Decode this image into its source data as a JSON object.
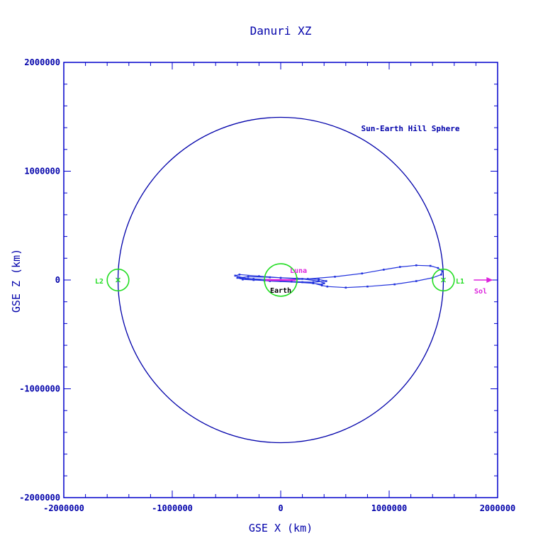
{
  "chart_data": {
    "type": "line",
    "title": "Danuri XZ",
    "xlabel": "GSE X (km)",
    "ylabel": "GSE Z (km)",
    "xlim": [
      -2000000,
      2000000
    ],
    "ylim": [
      -2000000,
      2000000
    ],
    "x_ticks": [
      -2000000,
      -1000000,
      0,
      1000000,
      2000000
    ],
    "y_ticks": [
      -2000000,
      -1000000,
      0,
      1000000,
      2000000
    ],
    "x_tick_labels": [
      "-2000000",
      "-1000000",
      "0",
      "1000000",
      "2000000"
    ],
    "y_tick_labels": [
      "-2000000",
      "-1000000",
      "0",
      "1000000",
      "2000000"
    ],
    "hill_sphere": {
      "label": "Sun-Earth Hill Sphere",
      "center": [
        0,
        0
      ],
      "radius": 1500000
    },
    "lagrange_points": [
      {
        "name": "L1",
        "label": "L1",
        "x": 1500000,
        "z": 0,
        "radius": 100000
      },
      {
        "name": "L2",
        "label": "L2",
        "x": -1500000,
        "z": 0,
        "radius": 100000
      }
    ],
    "earth": {
      "label": "Earth",
      "x": 0,
      "z": 0,
      "radius": 150000
    },
    "moon_orbit": {
      "label": "Luna",
      "x_range": [
        -140000,
        140000
      ],
      "z": 0
    },
    "sun_direction": {
      "label": "Sol",
      "from_x": 1780000,
      "to_x": 1950000,
      "z": 0
    },
    "trajectory": {
      "x": [
        0,
        250000,
        500000,
        750000,
        950000,
        1100000,
        1250000,
        1380000,
        1450000,
        1490000,
        1480000,
        1400000,
        1250000,
        1050000,
        800000,
        600000,
        430000,
        380000,
        300000,
        150000,
        -100000,
        -300000,
        -420000,
        -380000,
        -200000,
        0,
        200000,
        350000,
        400000,
        380000,
        200000,
        0,
        -250000,
        -380000,
        -300000,
        -100000,
        150000,
        350000,
        420000,
        300000,
        100000,
        -150000,
        -350000,
        -400000,
        -250000,
        0
      ],
      "z": [
        0,
        10000,
        30000,
        60000,
        95000,
        120000,
        135000,
        130000,
        110000,
        80000,
        50000,
        20000,
        -10000,
        -40000,
        -60000,
        -70000,
        -60000,
        -50000,
        -30000,
        -20000,
        -10000,
        10000,
        40000,
        50000,
        35000,
        20000,
        10000,
        -10000,
        -30000,
        -40000,
        -20000,
        -10000,
        0,
        20000,
        30000,
        25000,
        15000,
        5000,
        -10000,
        -20000,
        -15000,
        -5000,
        5000,
        20000,
        10000,
        0
      ]
    },
    "colors": {
      "axes": "#0000cc",
      "title": "#0000aa",
      "hill": "#0000aa",
      "trajectory": "#2233dd",
      "lagrange": "#22dd22",
      "earth": "#22dd22",
      "moon": "#dd22dd",
      "sun": "#dd22dd"
    },
    "grid": false,
    "legend": "none"
  }
}
